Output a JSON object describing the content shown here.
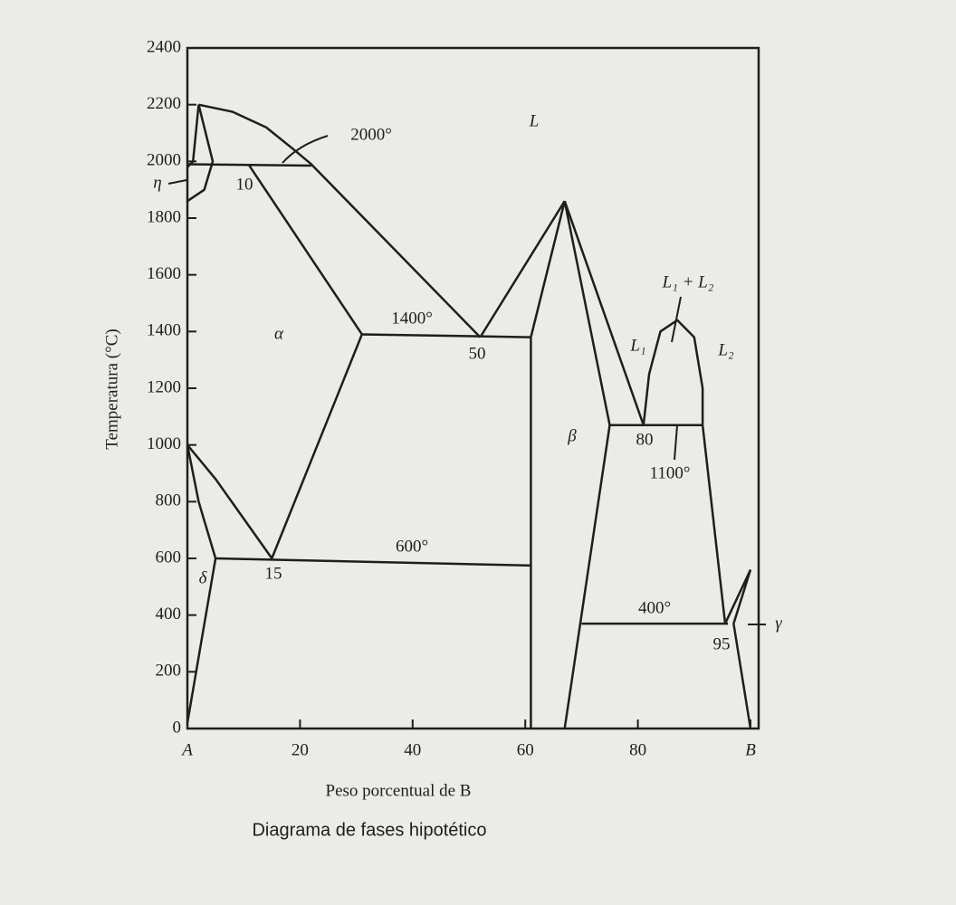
{
  "chart_data": {
    "type": "phase",
    "title": "Diagrama de fases hipotético",
    "xlabel": "Peso porcentual de B",
    "ylabel": "Temperatura (°C)",
    "xlim": [
      0,
      100
    ],
    "ylim": [
      0,
      2400
    ],
    "xticks": [
      {
        "value": 0,
        "label": "A"
      },
      20,
      40,
      60,
      80,
      {
        "value": 100,
        "label": "B"
      }
    ],
    "yticks": [
      0,
      200,
      400,
      600,
      800,
      1000,
      1200,
      1400,
      1600,
      1800,
      2000,
      2200,
      2400
    ],
    "color": "#1e1e1e",
    "annotations": [
      "2000°",
      "10",
      "L",
      "1400°",
      "50",
      "α",
      "L₁ + L₂",
      "L₁",
      "L₂",
      "β",
      "80",
      "1100°",
      "δ",
      "15",
      "600°",
      "400°",
      "95",
      "γ",
      "η"
    ],
    "series": [
      {
        "x": [
          2,
          8,
          14,
          19,
          22,
          52
        ],
        "values": [
          2200,
          2175,
          2120,
          2040,
          1990,
          1380
        ]
      },
      {
        "x": [
          0,
          22
        ],
        "values": [
          1990,
          1985
        ]
      },
      {
        "x": [
          2,
          4.5,
          3,
          0
        ],
        "values": [
          2200,
          2000,
          1900,
          1860
        ]
      },
      {
        "x": [
          2,
          1,
          0
        ],
        "values": [
          2200,
          2000,
          1980
        ]
      },
      {
        "x": [
          11,
          31
        ],
        "values": [
          1985,
          1390
        ]
      },
      {
        "x": [
          31,
          61
        ],
        "values": [
          1390,
          1380
        ]
      },
      {
        "x": [
          31,
          15
        ],
        "values": [
          1390,
          600
        ]
      },
      {
        "x": [
          0,
          5,
          10,
          15
        ],
        "values": [
          1000,
          880,
          740,
          600
        ]
      },
      {
        "x": [
          0,
          2,
          5,
          0
        ],
        "values": [
          1000,
          800,
          600,
          20
        ]
      },
      {
        "x": [
          5,
          61
        ],
        "values": [
          600,
          575
        ]
      },
      {
        "x": [
          61,
          61
        ],
        "values": [
          1380,
          0
        ]
      },
      {
        "x": [
          52,
          67
        ],
        "values": [
          1380,
          1860
        ]
      },
      {
        "x": [
          61,
          67
        ],
        "values": [
          1380,
          1860
        ]
      },
      {
        "x": [
          67,
          75
        ],
        "values": [
          1860,
          1070
        ]
      },
      {
        "x": [
          67,
          81
        ],
        "values": [
          1860,
          1070
        ]
      },
      {
        "x": [
          67,
          75
        ],
        "values": [
          0,
          1070
        ]
      },
      {
        "x": [
          75,
          91.5
        ],
        "values": [
          1070,
          1070
        ]
      },
      {
        "x": [
          81,
          82,
          84,
          87,
          90,
          91.5,
          91.5
        ],
        "values": [
          1070,
          1250,
          1400,
          1440,
          1380,
          1200,
          1070
        ]
      },
      {
        "x": [
          91.5,
          95.5
        ],
        "values": [
          1070,
          370
        ]
      },
      {
        "x": [
          70,
          96
        ],
        "values": [
          370,
          370
        ]
      },
      {
        "x": [
          100,
          95.5
        ],
        "values": [
          560,
          370
        ]
      },
      {
        "x": [
          100,
          97,
          100
        ],
        "values": [
          560,
          370,
          0
        ]
      }
    ]
  }
}
